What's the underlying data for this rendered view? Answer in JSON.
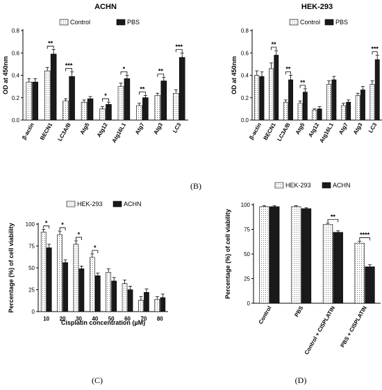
{
  "panel_labels": [
    "(B)",
    "(C)",
    "(D)"
  ],
  "colors": {
    "control": "#dcdcdc",
    "treated": "#1a1a1a",
    "stroke": "#000000"
  },
  "chart_data": [
    {
      "type": "bar",
      "title": "ACHN",
      "ylabel": "OD at 450nm",
      "xlabel": "",
      "ylim": [
        0,
        0.8
      ],
      "yticks": [
        "0.0",
        "0.2",
        "0.4",
        "0.6",
        "0.8"
      ],
      "categories": [
        "β-actin",
        "BECN1",
        "LC3A/B",
        "Atg5",
        "Atg12",
        "Atg16L1",
        "Atg7",
        "Atg3",
        "LC3"
      ],
      "legend": {
        "placement": "top-center"
      },
      "series": [
        {
          "name": "Control",
          "values": [
            0.34,
            0.44,
            0.17,
            0.16,
            0.1,
            0.3,
            0.13,
            0.22,
            0.24
          ],
          "errors": [
            0.03,
            0.03,
            0.02,
            0.02,
            0.02,
            0.03,
            0.02,
            0.02,
            0.03
          ]
        },
        {
          "name": "PBS",
          "values": [
            0.34,
            0.59,
            0.39,
            0.19,
            0.14,
            0.37,
            0.2,
            0.35,
            0.56
          ],
          "errors": [
            0.03,
            0.04,
            0.04,
            0.02,
            0.02,
            0.03,
            0.02,
            0.03,
            0.04
          ]
        }
      ],
      "significance": [
        {
          "category": 1,
          "label": "**"
        },
        {
          "category": 2,
          "label": "***"
        },
        {
          "category": 4,
          "label": "*"
        },
        {
          "category": 5,
          "label": "*"
        },
        {
          "category": 6,
          "label": "**"
        },
        {
          "category": 7,
          "label": "**"
        },
        {
          "category": 8,
          "label": "***"
        }
      ]
    },
    {
      "type": "bar",
      "title": "HEK-293",
      "ylabel": "OD at 450nm",
      "xlabel": "",
      "ylim": [
        0,
        0.8
      ],
      "yticks": [
        "0.0",
        "0.2",
        "0.4",
        "0.6",
        "0.8"
      ],
      "categories": [
        "β-actin",
        "BECN1",
        "LC3A/B",
        "Atg5",
        "Atg12",
        "Atg16L1",
        "Atg7",
        "Atg3",
        "LC3"
      ],
      "legend": {
        "placement": "top-center"
      },
      "series": [
        {
          "name": "Control",
          "values": [
            0.4,
            0.46,
            0.16,
            0.15,
            0.09,
            0.32,
            0.13,
            0.22,
            0.32
          ],
          "errors": [
            0.04,
            0.05,
            0.02,
            0.02,
            0.01,
            0.03,
            0.02,
            0.02,
            0.03
          ]
        },
        {
          "name": "PBS",
          "values": [
            0.39,
            0.58,
            0.36,
            0.25,
            0.1,
            0.36,
            0.16,
            0.27,
            0.54
          ],
          "errors": [
            0.04,
            0.04,
            0.04,
            0.03,
            0.02,
            0.03,
            0.02,
            0.03,
            0.04
          ]
        }
      ],
      "significance": [
        {
          "category": 1,
          "label": "**"
        },
        {
          "category": 2,
          "label": "**"
        },
        {
          "category": 3,
          "label": "**"
        },
        {
          "category": 8,
          "label": "***"
        }
      ]
    },
    {
      "type": "bar",
      "title": "",
      "ylabel": "Percentage (%) of cell viability",
      "xlabel": "Cisplatin concentration (µM)",
      "ylim": [
        0,
        100
      ],
      "yticks": [
        "0",
        "25",
        "50",
        "75",
        "100"
      ],
      "categories": [
        "10",
        "20",
        "30",
        "40",
        "50",
        "60",
        "70",
        "80"
      ],
      "legend": {
        "placement": "top-right"
      },
      "series": [
        {
          "name": "HEK-293",
          "values": [
            91,
            88,
            77,
            62,
            45,
            32,
            13,
            14
          ],
          "errors": [
            3,
            4,
            4,
            4,
            4,
            4,
            4,
            3
          ]
        },
        {
          "name": "ACHN",
          "values": [
            73,
            56,
            49,
            41,
            35,
            25,
            22,
            16
          ],
          "errors": [
            4,
            3,
            3,
            3,
            4,
            4,
            4,
            4
          ]
        }
      ],
      "significance": [
        {
          "category": 0,
          "label": "*"
        },
        {
          "category": 1,
          "label": "*"
        },
        {
          "category": 2,
          "label": "*"
        },
        {
          "category": 3,
          "label": "*"
        }
      ]
    },
    {
      "type": "bar",
      "title": "",
      "ylabel": "Percentage (%) of cell viability",
      "xlabel": "",
      "ylim": [
        0,
        100
      ],
      "yticks": [
        "0",
        "25",
        "50",
        "75",
        "100"
      ],
      "categories": [
        "Control",
        "PBS",
        "Control + CISPLATIN",
        "PBS + CISPLATIN"
      ],
      "legend": {
        "placement": "top-center"
      },
      "series": [
        {
          "name": "HEK-293",
          "values": [
            98,
            98,
            80,
            61
          ],
          "errors": [
            1,
            1,
            1.5,
            2
          ]
        },
        {
          "name": "ACHN",
          "values": [
            98,
            96,
            72,
            37
          ],
          "errors": [
            1,
            1,
            1.5,
            2
          ]
        }
      ],
      "significance": [
        {
          "category": 2,
          "label": "**"
        },
        {
          "category": 3,
          "label": "****"
        }
      ]
    }
  ]
}
